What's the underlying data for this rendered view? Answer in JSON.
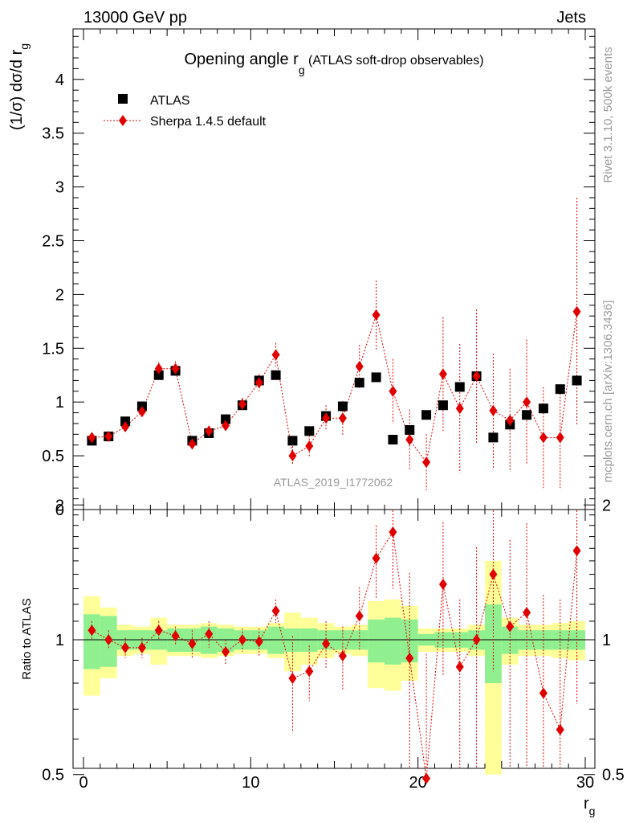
{
  "header": {
    "left_label": "13000 GeV pp",
    "right_label": "Jets"
  },
  "side_labels": {
    "rivet": "Rivet 3.1.10,  500k events",
    "mcplots": "mcplots.cern.ch [arXiv:1306.3436]"
  },
  "watermark": "ATLAS_2019_I1772062",
  "chart_data": [
    {
      "type": "scatter",
      "title_main": "Opening angle r",
      "title_sub": "g",
      "title_rest": " (ATLAS soft-drop observables)",
      "ylabel": "(1/σ) dσ/d r",
      "ylabel_sub": "g",
      "ylim": [
        0,
        4.45
      ],
      "yticks": [
        "0",
        "0.5",
        "1",
        "1.5",
        "2",
        "2.5",
        "3",
        "3.5",
        "4"
      ],
      "legend_position": "top-left",
      "series": [
        {
          "name": "ATLAS",
          "color": "#000000",
          "marker": "square",
          "x": [
            0.5,
            1.5,
            2.5,
            3.5,
            4.5,
            5.5,
            6.5,
            7.5,
            8.5,
            9.5,
            10.5,
            11.5,
            12.5,
            13.5,
            14.5,
            15.5,
            16.5,
            17.5,
            18.5,
            19.5,
            20.5,
            21.5,
            22.5,
            23.5,
            24.5,
            25.5,
            26.5,
            27.5,
            28.5,
            29.5
          ],
          "values": [
            0.64,
            0.68,
            0.82,
            0.96,
            1.25,
            1.29,
            0.64,
            0.71,
            0.84,
            0.97,
            1.2,
            1.25,
            0.64,
            0.73,
            0.87,
            0.96,
            1.18,
            1.23,
            0.65,
            0.74,
            0.88,
            0.97,
            1.14,
            1.24,
            0.67,
            0.79,
            0.88,
            0.94,
            1.12,
            1.2
          ]
        },
        {
          "name": "Sherpa 1.4.5 default",
          "color": "#e00000",
          "marker": "diamond",
          "line": "dotted",
          "x": [
            0.5,
            1.5,
            2.5,
            3.5,
            4.5,
            5.5,
            6.5,
            7.5,
            8.5,
            9.5,
            10.5,
            11.5,
            12.5,
            13.5,
            14.5,
            15.5,
            16.5,
            17.5,
            18.5,
            19.5,
            20.5,
            21.5,
            22.5,
            23.5,
            24.5,
            25.5,
            26.5,
            27.5,
            28.5,
            29.5
          ],
          "values": [
            0.67,
            0.68,
            0.77,
            0.91,
            1.31,
            1.31,
            0.61,
            0.73,
            0.78,
            0.98,
            1.18,
            1.44,
            0.5,
            0.59,
            0.85,
            0.85,
            1.33,
            1.81,
            1.1,
            0.65,
            0.44,
            1.26,
            0.94,
            1.24,
            0.92,
            0.83,
            1.0,
            0.67,
            0.67,
            1.84
          ],
          "errors": [
            0.04,
            0.04,
            0.04,
            0.05,
            0.06,
            0.07,
            0.05,
            0.05,
            0.06,
            0.06,
            0.08,
            0.11,
            0.09,
            0.1,
            0.12,
            0.16,
            0.2,
            0.32,
            0.3,
            0.28,
            0.26,
            0.53,
            0.6,
            0.62,
            0.53,
            0.48,
            0.58,
            0.47,
            0.47,
            1.06
          ]
        }
      ]
    },
    {
      "type": "scatter",
      "ylabel": "Ratio to ATLAS",
      "xlabel": "r",
      "xlabel_sub": "g",
      "xlim": [
        0,
        30
      ],
      "ylim": [
        0.35,
        2.35
      ],
      "xticks": [
        "0",
        "10",
        "20",
        "30"
      ],
      "yticks": [
        "0.5",
        "1",
        "2"
      ],
      "bands": {
        "inner_color": "#90f090",
        "outer_color": "#ffff99",
        "inner": [
          0.14,
          0.13,
          0.05,
          0.05,
          0.05,
          0.06,
          0.06,
          0.07,
          0.06,
          0.05,
          0.05,
          0.07,
          0.06,
          0.06,
          0.05,
          0.05,
          0.05,
          0.11,
          0.12,
          0.11,
          0.03,
          0.04,
          0.04,
          0.05,
          0.2,
          0.07,
          0.05,
          0.05,
          0.05,
          0.05
        ],
        "outer": [
          0.25,
          0.18,
          0.08,
          0.07,
          0.12,
          0.08,
          0.08,
          0.09,
          0.08,
          0.07,
          0.07,
          0.09,
          0.15,
          0.12,
          0.09,
          0.07,
          0.08,
          0.22,
          0.23,
          0.19,
          0.06,
          0.06,
          0.06,
          0.08,
          0.5,
          0.12,
          0.08,
          0.08,
          0.09,
          0.1
        ]
      },
      "series": [
        {
          "name": "Sherpa 1.4.5 default",
          "color": "#e00000",
          "marker": "diamond",
          "x": [
            0.5,
            1.5,
            2.5,
            3.5,
            4.5,
            5.5,
            6.5,
            7.5,
            8.5,
            9.5,
            10.5,
            11.5,
            12.5,
            13.5,
            14.5,
            15.5,
            16.5,
            17.5,
            18.5,
            19.5,
            20.5,
            21.5,
            22.5,
            23.5,
            24.5,
            25.5,
            26.5,
            27.5,
            28.5,
            29.5
          ],
          "values": [
            1.05,
            1.0,
            0.96,
            0.96,
            1.05,
            1.02,
            0.98,
            1.03,
            0.94,
            1.0,
            0.99,
            1.16,
            0.82,
            0.85,
            0.98,
            0.92,
            1.13,
            1.52,
            1.74,
            0.91,
            0.49,
            1.33,
            0.87,
            1.0,
            1.4,
            1.07,
            1.15,
            0.76,
            0.63,
            1.58
          ],
          "errors": [
            0.05,
            0.05,
            0.05,
            0.05,
            0.05,
            0.05,
            0.07,
            0.07,
            0.06,
            0.06,
            0.07,
            0.07,
            0.2,
            0.12,
            0.12,
            0.15,
            0.18,
            0.28,
            0.44,
            0.5,
            0.44,
            0.5,
            0.36,
            0.61,
            0.55,
            0.6,
            0.67,
            0.5,
            0.6,
            0.86
          ]
        }
      ]
    }
  ]
}
